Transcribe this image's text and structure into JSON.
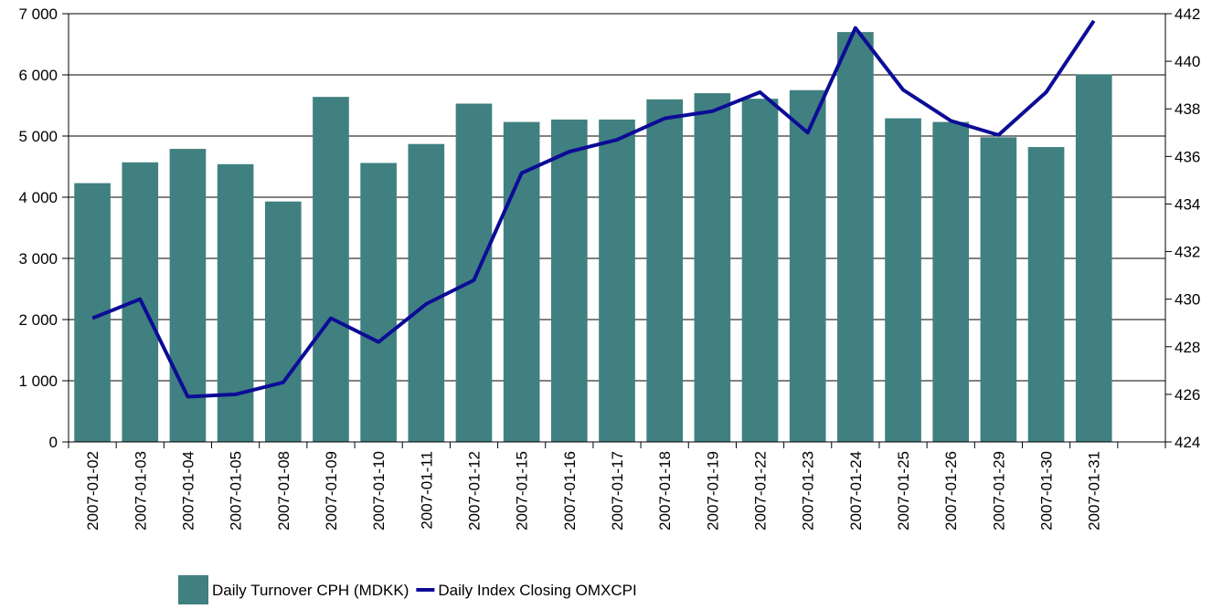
{
  "chart_data": {
    "type": "bar-line",
    "categories": [
      "2007-01-02",
      "2007-01-03",
      "2007-01-04",
      "2007-01-05",
      "2007-01-08",
      "2007-01-09",
      "2007-01-10",
      "2007-01-11",
      "2007-01-12",
      "2007-01-15",
      "2007-01-16",
      "2007-01-17",
      "2007-01-18",
      "2007-01-19",
      "2007-01-22",
      "2007-01-23",
      "2007-01-24",
      "2007-01-25",
      "2007-01-26",
      "2007-01-29",
      "2007-01-30",
      "2007-01-31",
      null
    ],
    "series": [
      {
        "name": "Daily Turnover CPH (MDKK)",
        "type": "bar",
        "color": "#408080",
        "values": [
          4230,
          4570,
          4790,
          4540,
          3930,
          5640,
          4560,
          4870,
          5530,
          5230,
          5270,
          5270,
          5600,
          5700,
          5610,
          5750,
          6700,
          5290,
          5230,
          4980,
          4820,
          6010,
          null
        ]
      },
      {
        "name": "Daily Index Closing OMXCPI",
        "type": "line",
        "axis": "y2",
        "color": "#0c0c96",
        "values": [
          429.2,
          430.0,
          425.9,
          426.0,
          426.5,
          429.2,
          428.2,
          429.8,
          430.8,
          435.3,
          436.2,
          436.7,
          437.6,
          437.9,
          438.7,
          437.0,
          441.4,
          438.8,
          437.5,
          436.9,
          438.7,
          441.7,
          null
        ]
      }
    ],
    "ylim": [
      0,
      7000
    ],
    "yticks": [
      0,
      {
        "value": 1000,
        "label": "1 000"
      },
      {
        "value": 2000,
        "label": "2 000"
      },
      {
        "value": 3000,
        "label": "3 000"
      },
      {
        "value": 4000,
        "label": "4 000"
      },
      {
        "value": 5000,
        "label": "5 000"
      },
      {
        "value": 6000,
        "label": "6 000"
      },
      {
        "value": 7000,
        "label": "7 000"
      }
    ],
    "y2lim": [
      424,
      442
    ],
    "y2ticks": [
      424,
      426,
      428,
      430,
      432,
      434,
      436,
      438,
      440,
      442
    ],
    "grid": true,
    "legend": "bottom"
  }
}
